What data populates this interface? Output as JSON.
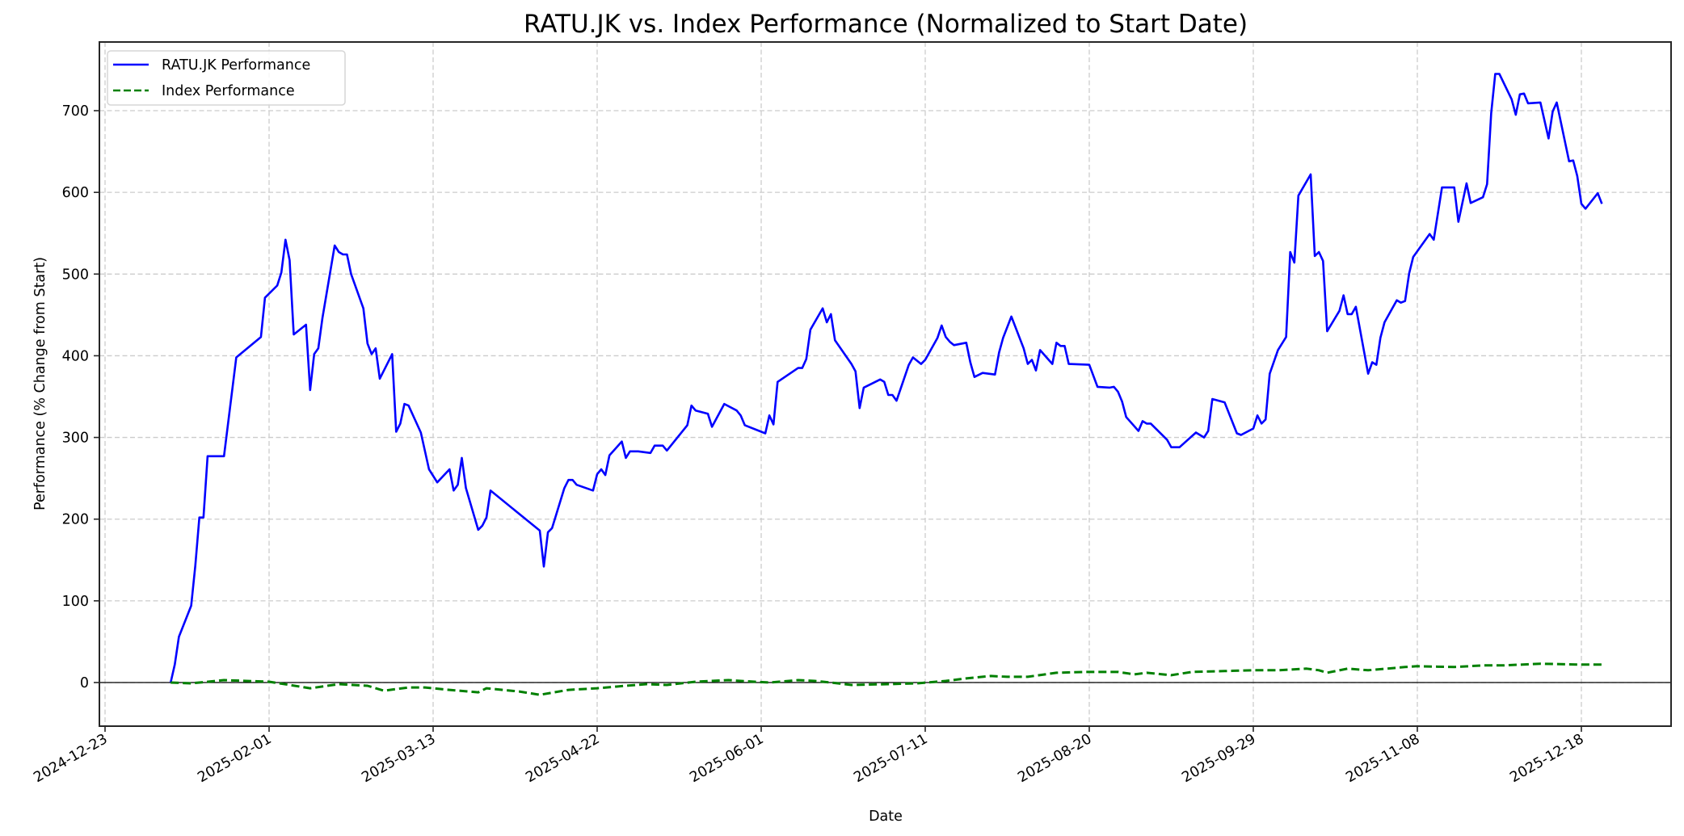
{
  "chart_data": {
    "type": "line",
    "title": "RATU.JK vs. Index Performance (Normalized to Start Date)",
    "xlabel": "Date",
    "ylabel": "Performance (% Change from Start)",
    "x_tick_labels": [
      "2024-12-23",
      "2025-02-01",
      "2025-03-13",
      "2025-04-22",
      "2025-06-01",
      "2025-07-11",
      "2025-08-20",
      "2025-09-29",
      "2025-11-08",
      "2025-12-18"
    ],
    "y_ticks": [
      0,
      100,
      200,
      300,
      400,
      500,
      600,
      700
    ],
    "y_tick_labels": [
      "0",
      "100",
      "200",
      "300",
      "400",
      "500",
      "600",
      "700"
    ],
    "xlim": [
      "2024-12-21",
      "2026-01-08"
    ],
    "ylim": [
      -53,
      784
    ],
    "grid": true,
    "reference_line_y": 0,
    "legend_position": "upper left",
    "legend": [
      {
        "label": "RATU.JK Performance",
        "color": "#0000ff",
        "style": "solid"
      },
      {
        "label": "Index Performance",
        "color": "#008000",
        "style": "dashed"
      }
    ],
    "series": [
      {
        "name": "RATU.JK Performance",
        "color": "#0000ff",
        "style": "solid",
        "points": [
          [
            "2025-01-08",
            0
          ],
          [
            "2025-01-09",
            22
          ],
          [
            "2025-01-10",
            56
          ],
          [
            "2025-01-13",
            94
          ],
          [
            "2025-01-14",
            143
          ],
          [
            "2025-01-15",
            202
          ],
          [
            "2025-01-16",
            202
          ],
          [
            "2025-01-17",
            277
          ],
          [
            "2025-01-21",
            277
          ],
          [
            "2025-01-24",
            398
          ],
          [
            "2025-01-30",
            423
          ],
          [
            "2025-01-31",
            471
          ],
          [
            "2025-02-03",
            486
          ],
          [
            "2025-02-04",
            502
          ],
          [
            "2025-02-05",
            542
          ],
          [
            "2025-02-06",
            517
          ],
          [
            "2025-02-07",
            426
          ],
          [
            "2025-02-10",
            438
          ],
          [
            "2025-02-11",
            358
          ],
          [
            "2025-02-12",
            402
          ],
          [
            "2025-02-13",
            409
          ],
          [
            "2025-02-14",
            446
          ],
          [
            "2025-02-17",
            535
          ],
          [
            "2025-02-18",
            527
          ],
          [
            "2025-02-19",
            524
          ],
          [
            "2025-02-20",
            524
          ],
          [
            "2025-02-21",
            500
          ],
          [
            "2025-02-24",
            458
          ],
          [
            "2025-02-25",
            415
          ],
          [
            "2025-02-26",
            402
          ],
          [
            "2025-02-27",
            409
          ],
          [
            "2025-02-28",
            372
          ],
          [
            "2025-03-03",
            402
          ],
          [
            "2025-03-04",
            307
          ],
          [
            "2025-03-05",
            317
          ],
          [
            "2025-03-06",
            341
          ],
          [
            "2025-03-07",
            339
          ],
          [
            "2025-03-10",
            306
          ],
          [
            "2025-03-12",
            261
          ],
          [
            "2025-03-14",
            245
          ],
          [
            "2025-03-17",
            261
          ],
          [
            "2025-03-18",
            235
          ],
          [
            "2025-03-19",
            242
          ],
          [
            "2025-03-20",
            275
          ],
          [
            "2025-03-21",
            238
          ],
          [
            "2025-03-24",
            187
          ],
          [
            "2025-03-25",
            192
          ],
          [
            "2025-03-26",
            202
          ],
          [
            "2025-03-27",
            235
          ],
          [
            "2025-04-08",
            186
          ],
          [
            "2025-04-09",
            142
          ],
          [
            "2025-04-10",
            184
          ],
          [
            "2025-04-11",
            189
          ],
          [
            "2025-04-14",
            238
          ],
          [
            "2025-04-15",
            248
          ],
          [
            "2025-04-16",
            248
          ],
          [
            "2025-04-17",
            242
          ],
          [
            "2025-04-21",
            235
          ],
          [
            "2025-04-22",
            255
          ],
          [
            "2025-04-23",
            261
          ],
          [
            "2025-04-24",
            254
          ],
          [
            "2025-04-25",
            278
          ],
          [
            "2025-04-28",
            295
          ],
          [
            "2025-04-29",
            275
          ],
          [
            "2025-04-30",
            283
          ],
          [
            "2025-05-02",
            283
          ],
          [
            "2025-05-05",
            281
          ],
          [
            "2025-05-06",
            290
          ],
          [
            "2025-05-08",
            290
          ],
          [
            "2025-05-09",
            284
          ],
          [
            "2025-05-14",
            315
          ],
          [
            "2025-05-15",
            339
          ],
          [
            "2025-05-16",
            333
          ],
          [
            "2025-05-19",
            329
          ],
          [
            "2025-05-20",
            313
          ],
          [
            "2025-05-23",
            341
          ],
          [
            "2025-05-26",
            333
          ],
          [
            "2025-05-27",
            327
          ],
          [
            "2025-05-28",
            315
          ],
          [
            "2025-06-02",
            305
          ],
          [
            "2025-06-03",
            327
          ],
          [
            "2025-06-04",
            316
          ],
          [
            "2025-06-05",
            368
          ],
          [
            "2025-06-10",
            385
          ],
          [
            "2025-06-11",
            385
          ],
          [
            "2025-06-12",
            396
          ],
          [
            "2025-06-13",
            432
          ],
          [
            "2025-06-16",
            458
          ],
          [
            "2025-06-17",
            441
          ],
          [
            "2025-06-18",
            451
          ],
          [
            "2025-06-19",
            419
          ],
          [
            "2025-06-23",
            390
          ],
          [
            "2025-06-24",
            381
          ],
          [
            "2025-06-25",
            336
          ],
          [
            "2025-06-26",
            361
          ],
          [
            "2025-06-30",
            371
          ],
          [
            "2025-07-01",
            368
          ],
          [
            "2025-07-02",
            352
          ],
          [
            "2025-07-03",
            352
          ],
          [
            "2025-07-04",
            345
          ],
          [
            "2025-07-07",
            389
          ],
          [
            "2025-07-08",
            398
          ],
          [
            "2025-07-10",
            390
          ],
          [
            "2025-07-11",
            395
          ],
          [
            "2025-07-14",
            422
          ],
          [
            "2025-07-15",
            437
          ],
          [
            "2025-07-16",
            423
          ],
          [
            "2025-07-17",
            417
          ],
          [
            "2025-07-18",
            413
          ],
          [
            "2025-07-21",
            416
          ],
          [
            "2025-07-22",
            392
          ],
          [
            "2025-07-23",
            374
          ],
          [
            "2025-07-25",
            379
          ],
          [
            "2025-07-28",
            377
          ],
          [
            "2025-07-29",
            404
          ],
          [
            "2025-07-30",
            422
          ],
          [
            "2025-08-01",
            448
          ],
          [
            "2025-08-04",
            409
          ],
          [
            "2025-08-05",
            390
          ],
          [
            "2025-08-06",
            395
          ],
          [
            "2025-08-07",
            382
          ],
          [
            "2025-08-08",
            407
          ],
          [
            "2025-08-11",
            390
          ],
          [
            "2025-08-12",
            416
          ],
          [
            "2025-08-13",
            412
          ],
          [
            "2025-08-14",
            412
          ],
          [
            "2025-08-15",
            390
          ],
          [
            "2025-08-20",
            389
          ],
          [
            "2025-08-22",
            362
          ],
          [
            "2025-08-25",
            361
          ],
          [
            "2025-08-26",
            362
          ],
          [
            "2025-08-27",
            356
          ],
          [
            "2025-08-28",
            344
          ],
          [
            "2025-08-29",
            325
          ],
          [
            "2025-09-01",
            308
          ],
          [
            "2025-09-02",
            320
          ],
          [
            "2025-09-03",
            317
          ],
          [
            "2025-09-04",
            317
          ],
          [
            "2025-09-08",
            297
          ],
          [
            "2025-09-09",
            288
          ],
          [
            "2025-09-11",
            288
          ],
          [
            "2025-09-15",
            306
          ],
          [
            "2025-09-17",
            300
          ],
          [
            "2025-09-18",
            308
          ],
          [
            "2025-09-19",
            347
          ],
          [
            "2025-09-22",
            343
          ],
          [
            "2025-09-25",
            305
          ],
          [
            "2025-09-26",
            303
          ],
          [
            "2025-09-29",
            311
          ],
          [
            "2025-09-30",
            327
          ],
          [
            "2025-10-01",
            317
          ],
          [
            "2025-10-02",
            322
          ],
          [
            "2025-10-03",
            378
          ],
          [
            "2025-10-05",
            407
          ],
          [
            "2025-10-07",
            423
          ],
          [
            "2025-10-08",
            527
          ],
          [
            "2025-10-09",
            514
          ],
          [
            "2025-10-10",
            596
          ],
          [
            "2025-10-13",
            622
          ],
          [
            "2025-10-14",
            522
          ],
          [
            "2025-10-15",
            527
          ],
          [
            "2025-10-16",
            516
          ],
          [
            "2025-10-17",
            430
          ],
          [
            "2025-10-20",
            455
          ],
          [
            "2025-10-21",
            474
          ],
          [
            "2025-10-22",
            451
          ],
          [
            "2025-10-23",
            451
          ],
          [
            "2025-10-24",
            460
          ],
          [
            "2025-10-27",
            378
          ],
          [
            "2025-10-28",
            392
          ],
          [
            "2025-10-29",
            389
          ],
          [
            "2025-10-30",
            422
          ],
          [
            "2025-10-31",
            441
          ],
          [
            "2025-11-03",
            468
          ],
          [
            "2025-11-04",
            465
          ],
          [
            "2025-11-05",
            467
          ],
          [
            "2025-11-06",
            501
          ],
          [
            "2025-11-07",
            521
          ],
          [
            "2025-11-11",
            549
          ],
          [
            "2025-11-12",
            542
          ],
          [
            "2025-11-14",
            606
          ],
          [
            "2025-11-17",
            606
          ],
          [
            "2025-11-18",
            564
          ],
          [
            "2025-11-20",
            611
          ],
          [
            "2025-11-21",
            587
          ],
          [
            "2025-11-24",
            594
          ],
          [
            "2025-11-25",
            610
          ],
          [
            "2025-11-26",
            697
          ],
          [
            "2025-11-27",
            745
          ],
          [
            "2025-11-28",
            745
          ],
          [
            "2025-12-01",
            714
          ],
          [
            "2025-12-02",
            695
          ],
          [
            "2025-12-03",
            720
          ],
          [
            "2025-12-04",
            721
          ],
          [
            "2025-12-05",
            709
          ],
          [
            "2025-12-08",
            710
          ],
          [
            "2025-12-10",
            666
          ],
          [
            "2025-12-11",
            699
          ],
          [
            "2025-12-12",
            710
          ],
          [
            "2025-12-15",
            638
          ],
          [
            "2025-12-16",
            639
          ],
          [
            "2025-12-17",
            620
          ],
          [
            "2025-12-18",
            586
          ],
          [
            "2025-12-19",
            580
          ],
          [
            "2025-12-22",
            599
          ],
          [
            "2025-12-23",
            586
          ]
        ]
      },
      {
        "name": "Index Performance",
        "color": "#008000",
        "style": "dashed",
        "points": [
          [
            "2025-01-08",
            0
          ],
          [
            "2025-01-13",
            -1
          ],
          [
            "2025-01-21",
            3
          ],
          [
            "2025-02-01",
            1
          ],
          [
            "2025-02-06",
            -3
          ],
          [
            "2025-02-11",
            -7
          ],
          [
            "2025-02-18",
            -2
          ],
          [
            "2025-02-25",
            -4
          ],
          [
            "2025-03-01",
            -10
          ],
          [
            "2025-03-07",
            -6
          ],
          [
            "2025-03-11",
            -6
          ],
          [
            "2025-03-17",
            -9
          ],
          [
            "2025-03-24",
            -12
          ],
          [
            "2025-03-26",
            -7
          ],
          [
            "2025-04-03",
            -11
          ],
          [
            "2025-04-08",
            -15
          ],
          [
            "2025-04-15",
            -9
          ],
          [
            "2025-04-22",
            -7
          ],
          [
            "2025-04-29",
            -4
          ],
          [
            "2025-05-04",
            -2
          ],
          [
            "2025-05-09",
            -3
          ],
          [
            "2025-05-16",
            1
          ],
          [
            "2025-05-24",
            3
          ],
          [
            "2025-05-27",
            2
          ],
          [
            "2025-06-03",
            0
          ],
          [
            "2025-06-10",
            3
          ],
          [
            "2025-06-14",
            2
          ],
          [
            "2025-06-18",
            0
          ],
          [
            "2025-06-23",
            -3
          ],
          [
            "2025-07-02",
            -2
          ],
          [
            "2025-07-09",
            -1
          ],
          [
            "2025-07-16",
            2
          ],
          [
            "2025-07-21",
            5
          ],
          [
            "2025-07-27",
            8
          ],
          [
            "2025-07-31",
            7
          ],
          [
            "2025-08-05",
            7
          ],
          [
            "2025-08-12",
            12
          ],
          [
            "2025-08-19",
            13
          ],
          [
            "2025-08-27",
            13
          ],
          [
            "2025-08-31",
            10
          ],
          [
            "2025-09-03",
            12
          ],
          [
            "2025-09-05",
            11
          ],
          [
            "2025-09-09",
            9
          ],
          [
            "2025-09-14",
            13
          ],
          [
            "2025-09-22",
            14
          ],
          [
            "2025-09-29",
            15
          ],
          [
            "2025-10-05",
            15
          ],
          [
            "2025-10-12",
            17
          ],
          [
            "2025-10-15",
            15
          ],
          [
            "2025-10-17",
            12
          ],
          [
            "2025-10-22",
            17
          ],
          [
            "2025-10-27",
            15
          ],
          [
            "2025-11-05",
            19
          ],
          [
            "2025-11-08",
            20
          ],
          [
            "2025-11-17",
            19
          ],
          [
            "2025-11-24",
            21
          ],
          [
            "2025-11-29",
            21
          ],
          [
            "2025-12-08",
            23
          ],
          [
            "2025-12-17",
            22
          ],
          [
            "2025-12-23",
            22
          ]
        ]
      }
    ]
  }
}
